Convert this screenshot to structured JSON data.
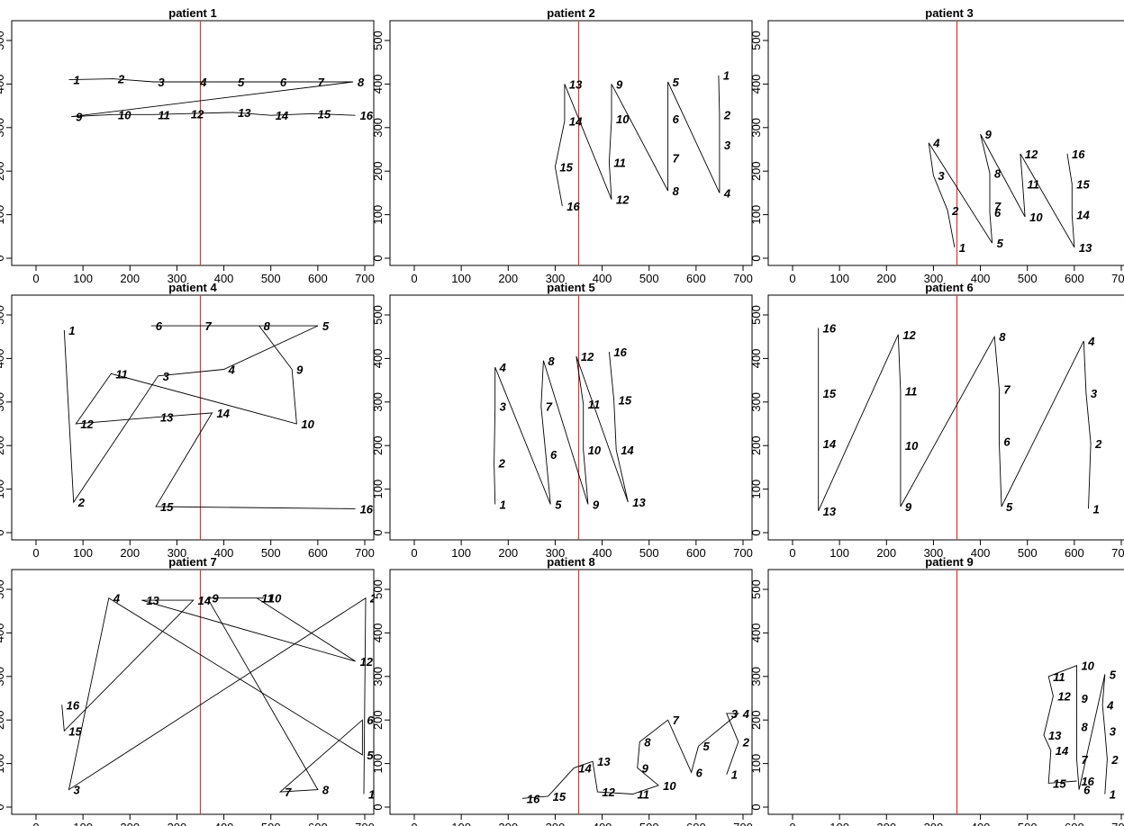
{
  "chart_data": [
    {
      "type": "line",
      "title": "patient 1",
      "xlim": [
        0,
        700
      ],
      "ylim": [
        0,
        500
      ],
      "vline_x": 350,
      "points": [
        [
          70,
          410
        ],
        [
          165,
          412
        ],
        [
          250,
          405
        ],
        [
          340,
          405
        ],
        [
          420,
          405
        ],
        [
          510,
          405
        ],
        [
          590,
          405
        ],
        [
          675,
          405
        ],
        [
          75,
          325
        ],
        [
          165,
          330
        ],
        [
          250,
          330
        ],
        [
          320,
          332
        ],
        [
          420,
          335
        ],
        [
          500,
          328
        ],
        [
          590,
          332
        ],
        [
          680,
          328
        ]
      ],
      "labels": [
        "1",
        "2",
        "3",
        "4",
        "5",
        "6",
        "7",
        "8",
        "9",
        "10",
        "11",
        "12",
        "13",
        "14",
        "15",
        "16"
      ]
    },
    {
      "type": "line",
      "title": "patient 2",
      "xlim": [
        0,
        700
      ],
      "ylim": [
        0,
        500
      ],
      "vline_x": 350,
      "points": [
        [
          648,
          420
        ],
        [
          650,
          330
        ],
        [
          650,
          260
        ],
        [
          650,
          150
        ],
        [
          540,
          405
        ],
        [
          540,
          320
        ],
        [
          540,
          230
        ],
        [
          540,
          155
        ],
        [
          420,
          400
        ],
        [
          420,
          320
        ],
        [
          415,
          220
        ],
        [
          420,
          135
        ],
        [
          320,
          400
        ],
        [
          320,
          315
        ],
        [
          300,
          210
        ],
        [
          315,
          120
        ]
      ],
      "labels": [
        "1",
        "2",
        "3",
        "4",
        "5",
        "6",
        "7",
        "8",
        "9",
        "10",
        "11",
        "12",
        "13",
        "14",
        "15",
        "16"
      ]
    },
    {
      "type": "line",
      "title": "patient 3",
      "xlim": [
        0,
        700
      ],
      "ylim": [
        0,
        500
      ],
      "vline_x": 350,
      "points": [
        [
          345,
          25
        ],
        [
          330,
          110
        ],
        [
          300,
          190
        ],
        [
          290,
          265
        ],
        [
          425,
          35
        ],
        [
          420,
          105
        ],
        [
          420,
          120
        ],
        [
          420,
          195
        ],
        [
          400,
          285
        ],
        [
          495,
          95
        ],
        [
          490,
          170
        ],
        [
          485,
          240
        ],
        [
          600,
          25
        ],
        [
          595,
          100
        ],
        [
          595,
          170
        ],
        [
          585,
          240
        ]
      ],
      "labels": [
        "1",
        "2",
        "3",
        "4",
        "5",
        "6",
        "7",
        "8",
        "9",
        "10",
        "11",
        "12",
        "13",
        "14",
        "15",
        "16"
      ]
    },
    {
      "type": "line",
      "title": "patient 4",
      "xlim": [
        0,
        700
      ],
      "ylim": [
        0,
        500
      ],
      "vline_x": 350,
      "points": [
        [
          60,
          465
        ],
        [
          80,
          70
        ],
        [
          260,
          360
        ],
        [
          400,
          375
        ],
        [
          600,
          475
        ],
        [
          245,
          475
        ],
        [
          350,
          475
        ],
        [
          475,
          475
        ],
        [
          545,
          375
        ],
        [
          555,
          250
        ],
        [
          160,
          365
        ],
        [
          85,
          250
        ],
        [
          255,
          265
        ],
        [
          375,
          275
        ],
        [
          255,
          60
        ],
        [
          680,
          55
        ]
      ],
      "labels": [
        "1",
        "2",
        "3",
        "4",
        "5",
        "6",
        "7",
        "8",
        "9",
        "10",
        "11",
        "12",
        "13",
        "14",
        "15",
        "16"
      ]
    },
    {
      "type": "line",
      "title": "patient 5",
      "xlim": [
        0,
        700
      ],
      "ylim": [
        0,
        500
      ],
      "vline_x": 350,
      "points": [
        [
          172,
          65
        ],
        [
          170,
          160
        ],
        [
          172,
          290
        ],
        [
          172,
          380
        ],
        [
          290,
          65
        ],
        [
          280,
          180
        ],
        [
          270,
          290
        ],
        [
          275,
          395
        ],
        [
          370,
          65
        ],
        [
          360,
          190
        ],
        [
          360,
          295
        ],
        [
          345,
          405
        ],
        [
          455,
          70
        ],
        [
          430,
          190
        ],
        [
          425,
          305
        ],
        [
          415,
          415
        ]
      ],
      "labels": [
        "1",
        "2",
        "3",
        "4",
        "5",
        "6",
        "7",
        "8",
        "9",
        "10",
        "11",
        "12",
        "13",
        "14",
        "15",
        "16"
      ]
    },
    {
      "type": "line",
      "title": "patient 6",
      "xlim": [
        0,
        700
      ],
      "ylim": [
        0,
        500
      ],
      "vline_x": 350,
      "points": [
        [
          630,
          55
        ],
        [
          635,
          205
        ],
        [
          625,
          320
        ],
        [
          620,
          440
        ],
        [
          445,
          60
        ],
        [
          440,
          210
        ],
        [
          440,
          330
        ],
        [
          430,
          450
        ],
        [
          230,
          60
        ],
        [
          230,
          200
        ],
        [
          230,
          325
        ],
        [
          225,
          455
        ],
        [
          55,
          50
        ],
        [
          55,
          205
        ],
        [
          55,
          320
        ],
        [
          55,
          470
        ]
      ],
      "labels": [
        "1",
        "2",
        "3",
        "4",
        "5",
        "6",
        "7",
        "8",
        "9",
        "10",
        "11",
        "12",
        "13",
        "14",
        "15",
        "16"
      ]
    },
    {
      "type": "line",
      "title": "patient 7",
      "xlim": [
        0,
        700
      ],
      "ylim": [
        0,
        500
      ],
      "vline_x": 350,
      "points": [
        [
          698,
          30
        ],
        [
          702,
          480
        ],
        [
          70,
          40
        ],
        [
          155,
          480
        ],
        [
          695,
          120
        ],
        [
          695,
          200
        ],
        [
          520,
          35
        ],
        [
          600,
          40
        ],
        [
          365,
          480
        ],
        [
          485,
          480
        ],
        [
          470,
          480
        ],
        [
          680,
          335
        ],
        [
          225,
          475
        ],
        [
          335,
          475
        ],
        [
          60,
          175
        ],
        [
          55,
          235
        ]
      ],
      "labels": [
        "1",
        "2",
        "3",
        "4",
        "5",
        "6",
        "7",
        "8",
        "9",
        "10",
        "11",
        "12",
        "13",
        "14",
        "15",
        "16"
      ]
    },
    {
      "type": "line",
      "title": "patient 8",
      "xlim": [
        0,
        700
      ],
      "ylim": [
        0,
        500
      ],
      "vline_x": 350,
      "points": [
        [
          665,
          75
        ],
        [
          690,
          150
        ],
        [
          665,
          215
        ],
        [
          690,
          215
        ],
        [
          605,
          140
        ],
        [
          590,
          80
        ],
        [
          540,
          200
        ],
        [
          480,
          150
        ],
        [
          475,
          90
        ],
        [
          520,
          50
        ],
        [
          465,
          30
        ],
        [
          390,
          35
        ],
        [
          380,
          105
        ],
        [
          340,
          90
        ],
        [
          285,
          25
        ],
        [
          230,
          20
        ]
      ],
      "labels": [
        "1",
        "2",
        "3",
        "4",
        "5",
        "6",
        "7",
        "8",
        "9",
        "10",
        "11",
        "12",
        "13",
        "14",
        "15",
        "16"
      ]
    },
    {
      "type": "line",
      "title": "patient 9",
      "xlim": [
        0,
        700
      ],
      "ylim": [
        0,
        500
      ],
      "vline_x": 350,
      "points": [
        [
          665,
          30
        ],
        [
          670,
          110
        ],
        [
          665,
          175
        ],
        [
          660,
          235
        ],
        [
          665,
          305
        ],
        [
          610,
          40
        ],
        [
          605,
          110
        ],
        [
          605,
          185
        ],
        [
          605,
          250
        ],
        [
          605,
          325
        ],
        [
          545,
          300
        ],
        [
          555,
          255
        ],
        [
          535,
          165
        ],
        [
          550,
          130
        ],
        [
          545,
          55
        ],
        [
          605,
          60
        ]
      ],
      "labels": [
        "1",
        "2",
        "3",
        "4",
        "5",
        "6",
        "7",
        "8",
        "9",
        "10",
        "11",
        "12",
        "13",
        "14",
        "15",
        "16"
      ]
    }
  ]
}
